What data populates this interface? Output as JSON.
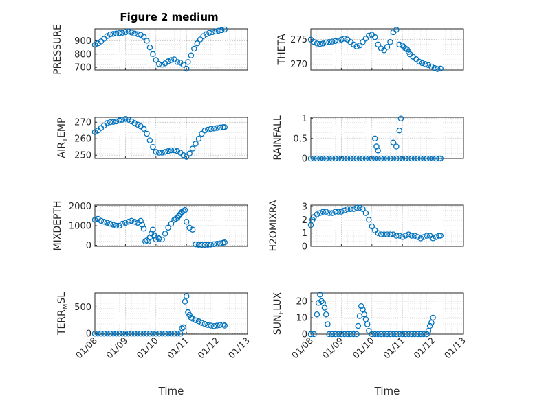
{
  "figure_title": "Figure 2 medium",
  "marker_color": "#0072bd",
  "chart_data": [
    {
      "type": "scatter",
      "ylabel": "PRESSURE",
      "ylim": [
        680,
        990
      ],
      "yticks": [
        700,
        800,
        900
      ],
      "xlim": [
        0,
        5
      ],
      "xticks": [],
      "xticklabels": [],
      "xlabel": "",
      "show_x_labels": false,
      "x": [
        0,
        0.1,
        0.2,
        0.3,
        0.4,
        0.5,
        0.6,
        0.7,
        0.8,
        0.9,
        1.0,
        1.1,
        1.2,
        1.3,
        1.4,
        1.5,
        1.6,
        1.7,
        1.8,
        1.9,
        2.0,
        2.1,
        2.2,
        2.3,
        2.4,
        2.5,
        2.6,
        2.7,
        2.8,
        2.9,
        3.0,
        3.05,
        3.15,
        3.25,
        3.35,
        3.45,
        3.55,
        3.65,
        3.75,
        3.85,
        3.95,
        4.05,
        4.15,
        4.25
      ],
      "y": [
        870,
        880,
        895,
        915,
        935,
        948,
        952,
        955,
        958,
        960,
        965,
        970,
        962,
        955,
        950,
        945,
        930,
        900,
        850,
        800,
        755,
        725,
        720,
        730,
        745,
        755,
        760,
        740,
        735,
        720,
        690,
        740,
        790,
        840,
        880,
        910,
        935,
        950,
        960,
        965,
        970,
        975,
        980,
        985
      ]
    },
    {
      "type": "scatter",
      "ylabel": "THETA",
      "ylim": [
        268.8,
        277.2
      ],
      "yticks": [
        270,
        275
      ],
      "xlim": [
        0,
        5
      ],
      "xticks": [],
      "xticklabels": [],
      "xlabel": "",
      "show_x_labels": false,
      "x": [
        0,
        0.1,
        0.2,
        0.3,
        0.4,
        0.5,
        0.6,
        0.7,
        0.8,
        0.9,
        1.0,
        1.1,
        1.2,
        1.3,
        1.4,
        1.5,
        1.6,
        1.7,
        1.8,
        1.9,
        2.0,
        2.1,
        2.2,
        2.3,
        2.4,
        2.5,
        2.6,
        2.7,
        2.8,
        2.9,
        3.0,
        3.05,
        3.1,
        3.15,
        3.2,
        3.25,
        3.35,
        3.45,
        3.55,
        3.65,
        3.75,
        3.85,
        3.95,
        4.05,
        4.15,
        4.25
      ],
      "y": [
        275,
        274.5,
        274.2,
        274.1,
        274.2,
        274.4,
        274.5,
        274.6,
        274.7,
        274.8,
        275,
        275.2,
        275,
        274.5,
        274,
        273.6,
        273.8,
        274.5,
        275.2,
        275.8,
        276,
        275.5,
        274,
        273.2,
        272.8,
        273.5,
        274.5,
        276.5,
        277,
        274,
        273.8,
        273.5,
        273.2,
        273,
        272.5,
        272,
        271.5,
        271,
        270.5,
        270.2,
        270,
        269.8,
        269.5,
        269.2,
        269,
        269.1
      ]
    },
    {
      "type": "scatter",
      "ylabel": "AIR_TEMP",
      "ylim": [
        248,
        273
      ],
      "yticks": [
        250,
        260,
        270
      ],
      "xlim": [
        0,
        5
      ],
      "xticks": [],
      "xticklabels": [],
      "xlabel": "",
      "show_x_labels": false,
      "x": [
        0,
        0.1,
        0.2,
        0.3,
        0.4,
        0.5,
        0.6,
        0.7,
        0.8,
        0.9,
        1.0,
        1.1,
        1.2,
        1.3,
        1.4,
        1.5,
        1.6,
        1.7,
        1.8,
        1.9,
        2.0,
        2.1,
        2.2,
        2.3,
        2.4,
        2.5,
        2.6,
        2.7,
        2.8,
        2.9,
        3.0,
        3.1,
        3.2,
        3.3,
        3.4,
        3.5,
        3.6,
        3.7,
        3.8,
        3.9,
        4.0,
        4.1,
        4.2,
        4.25
      ],
      "y": [
        264,
        265,
        266.5,
        268,
        269.5,
        270,
        270.2,
        270.5,
        271,
        271.5,
        272,
        271.5,
        270.5,
        269.5,
        268.5,
        267.5,
        266,
        263,
        259,
        255,
        252,
        251.5,
        251.5,
        252,
        252.5,
        253,
        253,
        252.5,
        251.5,
        250,
        249,
        251,
        254,
        257,
        260,
        263,
        265,
        265.5,
        266,
        266.2,
        266.5,
        266.8,
        267,
        267
      ]
    },
    {
      "type": "scatter",
      "ylabel": "RAINFALL",
      "ylim": [
        0,
        1.03
      ],
      "yticks": [
        0,
        0.5,
        1
      ],
      "xlim": [
        0,
        5
      ],
      "xticks": [],
      "xticklabels": [],
      "xlabel": "",
      "show_x_labels": false,
      "x": [
        0,
        0.1,
        0.2,
        0.3,
        0.4,
        0.5,
        0.6,
        0.7,
        0.8,
        0.9,
        1.0,
        1.1,
        1.2,
        1.3,
        1.4,
        1.5,
        1.6,
        1.7,
        1.8,
        1.9,
        2.0,
        2.1,
        2.2,
        2.3,
        2.4,
        2.5,
        2.6,
        2.7,
        2.8,
        2.9,
        3.0,
        3.1,
        3.2,
        3.3,
        3.4,
        3.5,
        3.6,
        3.7,
        3.8,
        3.9,
        4.0,
        4.1,
        4.2,
        4.25,
        2.1,
        2.15,
        2.2,
        2.7,
        2.8,
        2.9,
        2.95
      ],
      "y": [
        0,
        0,
        0,
        0,
        0,
        0,
        0,
        0,
        0,
        0,
        0,
        0,
        0,
        0,
        0,
        0,
        0,
        0,
        0,
        0,
        0,
        0,
        0,
        0,
        0,
        0,
        0,
        0,
        0,
        0,
        0,
        0,
        0,
        0,
        0,
        0,
        0,
        0,
        0,
        0,
        0,
        0,
        0,
        0,
        0.5,
        0.3,
        0.2,
        0.4,
        0.3,
        0.7,
        1.0
      ]
    },
    {
      "type": "scatter",
      "ylabel": "MIXDEPTH",
      "ylim": [
        -50,
        2050
      ],
      "yticks": [
        0,
        1000,
        2000
      ],
      "xlim": [
        0,
        5
      ],
      "xticks": [],
      "xticklabels": [],
      "xlabel": "",
      "show_x_labels": false,
      "x": [
        0,
        0.1,
        0.2,
        0.3,
        0.4,
        0.5,
        0.6,
        0.7,
        0.8,
        0.9,
        1.0,
        1.1,
        1.2,
        1.3,
        1.4,
        1.5,
        1.55,
        1.6,
        1.65,
        1.7,
        1.75,
        1.8,
        1.85,
        1.9,
        1.95,
        2.0,
        2.05,
        2.1,
        2.2,
        2.3,
        2.4,
        2.5,
        2.6,
        2.65,
        2.7,
        2.75,
        2.8,
        2.85,
        2.9,
        2.95,
        3.0,
        3.1,
        3.2,
        3.3,
        3.4,
        3.5,
        3.6,
        3.7,
        3.8,
        3.9,
        4.0,
        4.1,
        4.2,
        4.25
      ],
      "y": [
        1300,
        1350,
        1250,
        1200,
        1150,
        1100,
        1050,
        1000,
        1000,
        1100,
        1150,
        1200,
        1250,
        1200,
        1150,
        1250,
        1050,
        850,
        200,
        250,
        200,
        400,
        600,
        800,
        500,
        300,
        400,
        350,
        300,
        600,
        900,
        1100,
        1300,
        1350,
        1400,
        1500,
        1600,
        1700,
        1750,
        1800,
        1200,
        900,
        800,
        50,
        30,
        20,
        20,
        30,
        40,
        60,
        80,
        100,
        130,
        150
      ]
    },
    {
      "type": "scatter",
      "ylabel": "H2OMIXRA",
      "ylim": [
        0,
        3.1
      ],
      "yticks": [
        0,
        1,
        2,
        3
      ],
      "xlim": [
        0,
        5
      ],
      "xticks": [],
      "xticklabels": [],
      "xlabel": "",
      "show_x_labels": false,
      "x": [
        0,
        0.05,
        0.1,
        0.2,
        0.3,
        0.4,
        0.5,
        0.6,
        0.7,
        0.8,
        0.9,
        1.0,
        1.1,
        1.2,
        1.3,
        1.4,
        1.5,
        1.6,
        1.7,
        1.8,
        1.9,
        2.0,
        2.1,
        2.2,
        2.3,
        2.4,
        2.5,
        2.6,
        2.7,
        2.8,
        2.9,
        3.0,
        3.1,
        3.2,
        3.3,
        3.4,
        3.5,
        3.6,
        3.7,
        3.8,
        3.9,
        4.0,
        4.1,
        4.2,
        4.25
      ],
      "y": [
        1.6,
        2.0,
        2.2,
        2.4,
        2.5,
        2.6,
        2.6,
        2.5,
        2.5,
        2.6,
        2.6,
        2.6,
        2.7,
        2.8,
        2.8,
        2.8,
        2.9,
        2.9,
        2.8,
        2.5,
        2.0,
        1.5,
        1.2,
        1.0,
        0.9,
        0.9,
        0.9,
        0.9,
        0.9,
        0.8,
        0.8,
        0.7,
        0.8,
        0.9,
        0.8,
        0.8,
        0.7,
        0.6,
        0.7,
        0.8,
        0.8,
        0.6,
        0.7,
        0.8,
        0.8
      ]
    },
    {
      "type": "scatter",
      "ylabel": "TERR_MSL",
      "ylim": [
        -10,
        760
      ],
      "yticks": [
        0,
        500
      ],
      "xlim": [
        0,
        5
      ],
      "xticks": [
        0,
        1,
        2,
        3,
        4,
        5
      ],
      "xticklabels": [
        "01/08",
        "01/09",
        "01/10",
        "01/11",
        "01/12",
        "01/13"
      ],
      "xlabel": "Time",
      "show_x_labels": true,
      "x": [
        0,
        0.1,
        0.2,
        0.3,
        0.4,
        0.5,
        0.6,
        0.7,
        0.8,
        0.9,
        1.0,
        1.1,
        1.2,
        1.3,
        1.4,
        1.5,
        1.6,
        1.7,
        1.8,
        1.9,
        2.0,
        2.1,
        2.2,
        2.3,
        2.4,
        2.5,
        2.6,
        2.7,
        2.8,
        2.85,
        2.9,
        2.95,
        3.0,
        3.05,
        3.1,
        3.15,
        3.2,
        3.3,
        3.4,
        3.5,
        3.6,
        3.7,
        3.8,
        3.9,
        4.0,
        4.1,
        4.2,
        4.25
      ],
      "y": [
        0,
        0,
        0,
        0,
        0,
        0,
        0,
        0,
        0,
        0,
        0,
        0,
        0,
        0,
        0,
        0,
        0,
        0,
        0,
        0,
        0,
        0,
        0,
        0,
        0,
        0,
        0,
        0,
        0,
        100,
        120,
        600,
        700,
        400,
        350,
        300,
        280,
        250,
        230,
        200,
        180,
        160,
        150,
        140,
        150,
        160,
        170,
        150
      ]
    },
    {
      "type": "scatter",
      "ylabel": "SUN_FLUX",
      "ylim": [
        0,
        25
      ],
      "yticks": [
        0,
        10,
        20
      ],
      "xlim": [
        0,
        5
      ],
      "xticks": [
        0,
        1,
        2,
        3,
        4,
        5
      ],
      "xticklabels": [
        "01/08",
        "01/09",
        "01/10",
        "01/11",
        "01/12",
        "01/13"
      ],
      "xlabel": "Time",
      "show_x_labels": true,
      "x": [
        0,
        0.1,
        0.2,
        0.25,
        0.3,
        0.35,
        0.4,
        0.45,
        0.5,
        0.55,
        0.6,
        0.7,
        0.8,
        0.9,
        1.0,
        1.1,
        1.2,
        1.3,
        1.4,
        1.5,
        1.55,
        1.6,
        1.65,
        1.7,
        1.75,
        1.8,
        1.85,
        1.9,
        2.0,
        2.1,
        2.2,
        2.3,
        2.4,
        2.5,
        2.6,
        2.7,
        2.8,
        2.9,
        3.0,
        3.1,
        3.2,
        3.3,
        3.4,
        3.5,
        3.6,
        3.7,
        3.8,
        3.85,
        3.9,
        3.95,
        4.0
      ],
      "y": [
        0,
        0,
        12,
        19,
        24,
        20,
        19,
        16,
        12,
        6,
        0,
        0,
        0,
        0,
        0,
        0,
        0,
        0,
        0,
        0,
        5,
        11,
        17,
        15,
        12,
        9,
        6,
        2,
        0,
        0,
        0,
        0,
        0,
        0,
        0,
        0,
        0,
        0,
        0,
        0,
        0,
        0,
        0,
        0,
        0,
        0,
        0,
        2,
        5,
        7,
        10
      ]
    }
  ]
}
